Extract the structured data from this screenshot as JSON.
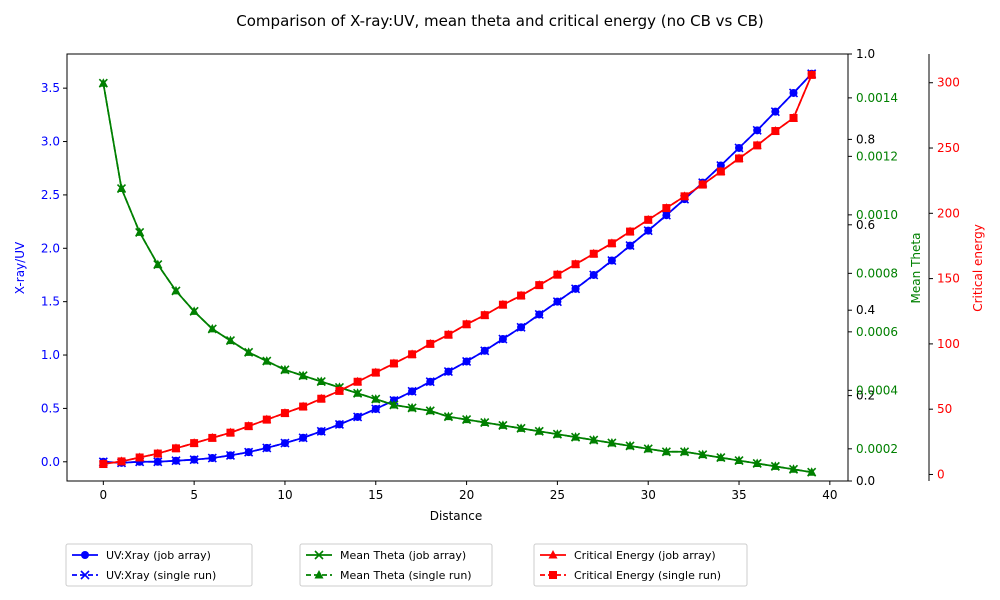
{
  "chart_data": {
    "type": "line",
    "title": "Comparison of X-ray:UV, mean theta and critical energy (no CB vs CB)",
    "xlabel": "Distance",
    "xlim": [
      -2,
      41
    ],
    "xticks": [
      0,
      5,
      10,
      15,
      20,
      25,
      30,
      35,
      40
    ],
    "x": [
      0,
      1,
      2,
      3,
      4,
      5,
      6,
      7,
      8,
      9,
      10,
      11,
      12,
      13,
      14,
      15,
      16,
      17,
      18,
      19,
      20,
      21,
      22,
      23,
      24,
      25,
      26,
      27,
      28,
      29,
      30,
      31,
      32,
      33,
      34,
      35,
      36,
      37,
      38,
      39
    ],
    "axes": {
      "left": {
        "label": "X-ray/UV",
        "color": "#0000ff",
        "ylim": [
          -0.18,
          3.82
        ],
        "ticks": [
          "0.0",
          "0.5",
          "1.0",
          "1.5",
          "2.0",
          "2.5",
          "3.0",
          "3.5"
        ]
      },
      "twin_plain": {
        "ylim": [
          0,
          1
        ],
        "ticks": [
          "0.0",
          "0.2",
          "0.4",
          "0.6",
          "0.8",
          "1.0"
        ]
      },
      "mean_theta": {
        "label": "Mean Theta",
        "color": "#008000",
        "ylim": [
          9e-05,
          0.00155
        ],
        "ticks": [
          "0.0002",
          "0.0004",
          "0.0006",
          "0.0008",
          "0.0010",
          "0.0012",
          "0.0014"
        ]
      },
      "critical": {
        "label": "Critical energy",
        "color": "#ff0000",
        "ylim": [
          -5,
          322
        ],
        "ticks": [
          "0",
          "50",
          "100",
          "150",
          "200",
          "250",
          "300"
        ]
      }
    },
    "series": [
      {
        "name": "UV:Xray (job array)",
        "axis": "left",
        "color": "#0000ff",
        "marker": "o",
        "dash": "solid",
        "values": [
          0.0,
          -0.01,
          0.0,
          0.0,
          0.01,
          0.02,
          0.035,
          0.06,
          0.09,
          0.13,
          0.175,
          0.225,
          0.285,
          0.35,
          0.42,
          0.495,
          0.575,
          0.66,
          0.75,
          0.845,
          0.94,
          1.04,
          1.15,
          1.26,
          1.38,
          1.5,
          1.62,
          1.75,
          1.885,
          2.025,
          2.165,
          2.31,
          2.46,
          2.615,
          2.775,
          2.94,
          3.105,
          3.28,
          3.455,
          3.635
        ]
      },
      {
        "name": "UV:Xray  (single run)",
        "axis": "left",
        "color": "#0000ff",
        "marker": "x",
        "dash": "dashed",
        "values": [
          0.0,
          -0.01,
          0.0,
          0.0,
          0.01,
          0.02,
          0.035,
          0.06,
          0.09,
          0.13,
          0.175,
          0.225,
          0.285,
          0.35,
          0.42,
          0.495,
          0.575,
          0.66,
          0.75,
          0.845,
          0.94,
          1.04,
          1.15,
          1.26,
          1.38,
          1.5,
          1.62,
          1.75,
          1.885,
          2.025,
          2.165,
          2.31,
          2.46,
          2.615,
          2.775,
          2.94,
          3.105,
          3.28,
          3.455,
          3.635
        ]
      },
      {
        "name": "Mean Theta (job array)",
        "axis": "mean_theta",
        "color": "#008000",
        "marker": "x",
        "dash": "solid",
        "values": [
          0.00145,
          0.00109,
          0.00094,
          0.00083,
          0.00074,
          0.00067,
          0.00061,
          0.00057,
          0.00053,
          0.0005,
          0.00047,
          0.00045,
          0.00043,
          0.00041,
          0.00039,
          0.00037,
          0.00035,
          0.00034,
          0.00033,
          0.00031,
          0.0003,
          0.00029,
          0.00028,
          0.00027,
          0.00026,
          0.00025,
          0.00024,
          0.00023,
          0.00022,
          0.00021,
          0.0002,
          0.00019,
          0.00019,
          0.00018,
          0.00017,
          0.00016,
          0.00015,
          0.00014,
          0.00013,
          0.00012
        ]
      },
      {
        "name": "Mean Theta (single run)",
        "axis": "mean_theta",
        "color": "#008000",
        "marker": "^",
        "dash": "dashed",
        "values": [
          0.00145,
          0.00109,
          0.00094,
          0.00083,
          0.00074,
          0.00067,
          0.00061,
          0.00057,
          0.00053,
          0.0005,
          0.00047,
          0.00045,
          0.00043,
          0.00041,
          0.00039,
          0.00037,
          0.00035,
          0.00034,
          0.00033,
          0.00031,
          0.0003,
          0.00029,
          0.00028,
          0.00027,
          0.00026,
          0.00025,
          0.00024,
          0.00023,
          0.00022,
          0.00021,
          0.0002,
          0.00019,
          0.00019,
          0.00018,
          0.00017,
          0.00016,
          0.00015,
          0.00014,
          0.00013,
          0.00012
        ]
      },
      {
        "name": "Critical Energy (job array)",
        "axis": "critical",
        "color": "#ff0000",
        "marker": "^",
        "dash": "solid",
        "values": [
          8,
          10,
          13,
          16,
          20,
          24,
          28,
          32,
          37,
          42,
          47,
          52,
          58,
          64,
          71,
          78,
          85,
          92,
          100,
          107,
          115,
          122,
          130,
          137,
          145,
          153,
          161,
          169,
          177,
          186,
          195,
          204,
          213,
          222,
          232,
          242,
          252,
          263,
          273,
          306
        ]
      },
      {
        "name": "Critical Energy (single run)",
        "axis": "critical",
        "color": "#ff0000",
        "marker": "s",
        "dash": "dashed",
        "values": [
          8,
          10,
          13,
          16,
          20,
          24,
          28,
          32,
          37,
          42,
          47,
          52,
          58,
          64,
          71,
          78,
          85,
          92,
          100,
          107,
          115,
          122,
          130,
          137,
          145,
          153,
          161,
          169,
          177,
          186,
          195,
          204,
          213,
          222,
          232,
          242,
          252,
          263,
          273,
          306
        ]
      }
    ],
    "legend": {
      "placement": "bottom",
      "entries": [
        "UV:Xray (job array)",
        "UV:Xray  (single run)",
        "Mean Theta (job array)",
        "Mean Theta (single run)",
        "Critical Energy (job array)",
        "Critical Energy (single run)"
      ]
    },
    "grid": false
  }
}
